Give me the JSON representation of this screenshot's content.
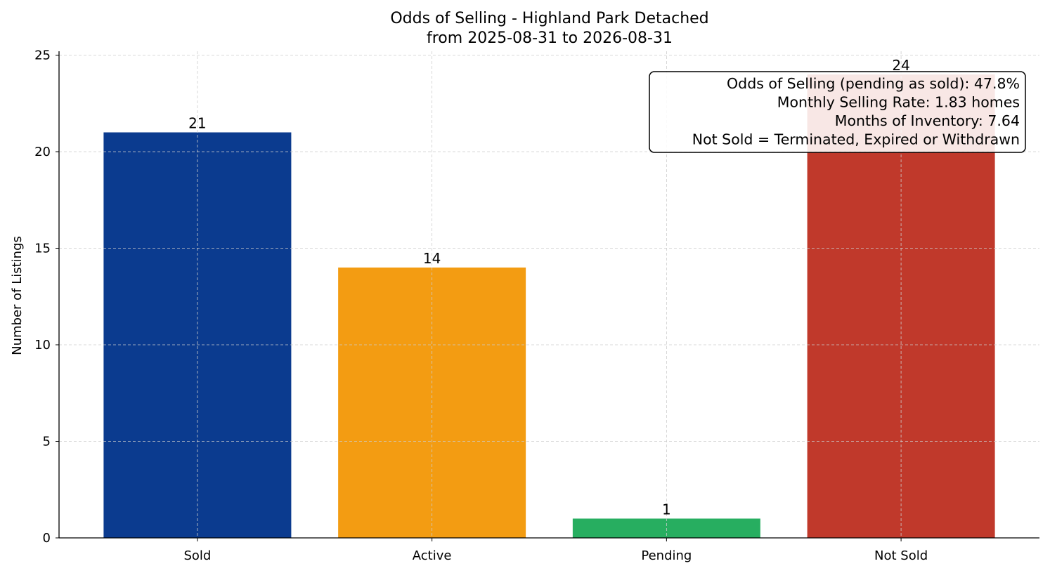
{
  "chart_data": {
    "type": "bar",
    "title": "Odds of Selling - Highland Park Detached",
    "subtitle": "from 2025-08-31 to 2026-08-31",
    "xlabel": "",
    "ylabel": "Number of Listings",
    "categories": [
      "Sold",
      "Active",
      "Pending",
      "Not Sold"
    ],
    "values": [
      21,
      14,
      1,
      24
    ],
    "colors": [
      "#0b3b8f",
      "#f39c12",
      "#27ae60",
      "#c0392b"
    ],
    "ylim": [
      0,
      25.2
    ],
    "yticks": [
      0,
      5,
      10,
      15,
      20,
      25
    ],
    "grid": true,
    "annotation": {
      "placement": "top-right",
      "lines": [
        "Odds of Selling (pending as sold): 47.8%",
        "Monthly Selling Rate: 1.83 homes",
        "Months of Inventory: 7.64",
        "Not Sold = Terminated, Expired or Withdrawn"
      ]
    }
  }
}
